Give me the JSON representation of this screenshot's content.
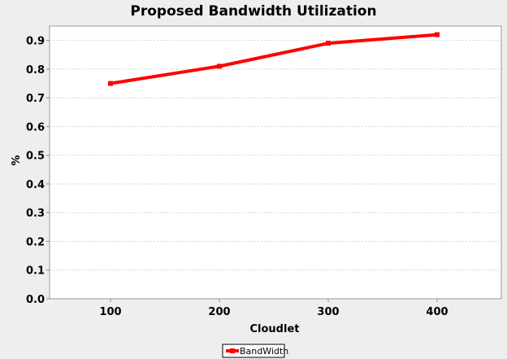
{
  "chart_data": {
    "type": "line",
    "title": "Proposed Bandwidth Utilization",
    "xlabel": "Cloudlet",
    "ylabel": "%",
    "categories": [
      "100",
      "200",
      "300",
      "400"
    ],
    "series": [
      {
        "name": "BandWidth",
        "values": [
          0.75,
          0.81,
          0.89,
          0.92
        ],
        "color": "#ff0000"
      }
    ],
    "ylim": [
      0.0,
      0.95
    ],
    "yticks": [
      "0.0",
      "0.1",
      "0.2",
      "0.3",
      "0.4",
      "0.5",
      "0.6",
      "0.7",
      "0.8",
      "0.9"
    ],
    "grid": true,
    "legend_position": "bottom-center"
  }
}
